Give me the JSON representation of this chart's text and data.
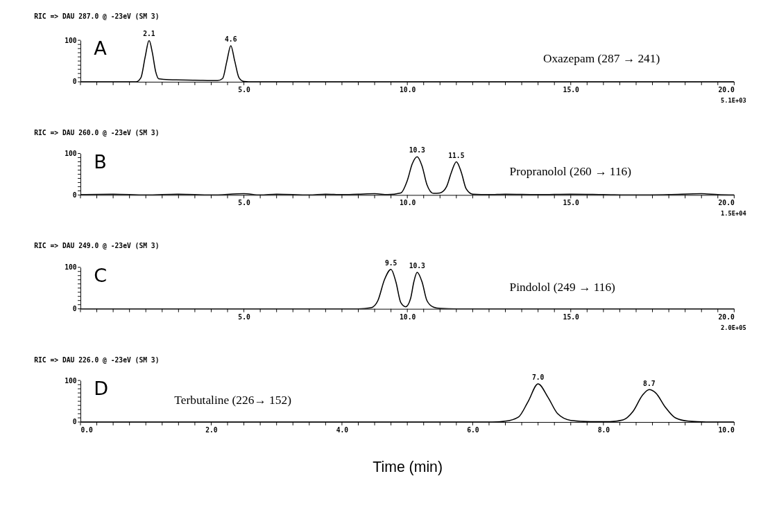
{
  "chart_data": [
    {
      "type": "line",
      "title": "RIC => DAU 287.0 @ -23eV (SM 3)",
      "grid": false,
      "series": [
        {
          "color": "#000000",
          "x": [
            0,
            1.7,
            1.85,
            1.98,
            2.1,
            2.2,
            2.3,
            2.4,
            2.7,
            3.5,
            4.2,
            4.35,
            4.48,
            4.6,
            4.72,
            4.85,
            5.0,
            5.3,
            20
          ],
          "values": [
            0,
            0,
            10,
            60,
            100,
            70,
            25,
            7,
            5,
            4,
            3,
            8,
            50,
            87,
            50,
            10,
            1,
            0,
            0
          ]
        }
      ],
      "xlim": [
        0,
        20
      ],
      "xticks": [
        {
          "value": 0,
          "label": null
        },
        {
          "value": 0.5,
          "label": null
        },
        {
          "value": 1,
          "label": null
        },
        {
          "value": 1.5,
          "label": null
        },
        {
          "value": 2,
          "label": null
        },
        {
          "value": 2.5,
          "label": null
        },
        {
          "value": 3,
          "label": null
        },
        {
          "value": 3.5,
          "label": null
        },
        {
          "value": 4,
          "label": null
        },
        {
          "value": 4.5,
          "label": null
        },
        {
          "value": 5,
          "label": "5.0"
        },
        {
          "value": 5.5,
          "label": null
        },
        {
          "value": 6,
          "label": null
        },
        {
          "value": 6.5,
          "label": null
        },
        {
          "value": 7,
          "label": null
        },
        {
          "value": 7.5,
          "label": null
        },
        {
          "value": 8,
          "label": null
        },
        {
          "value": 8.5,
          "label": null
        },
        {
          "value": 9,
          "label": null
        },
        {
          "value": 9.5,
          "label": null
        },
        {
          "value": 10,
          "label": "10.0"
        },
        {
          "value": 10.5,
          "label": null
        },
        {
          "value": 11,
          "label": null
        },
        {
          "value": 11.5,
          "label": null
        },
        {
          "value": 12,
          "label": null
        },
        {
          "value": 12.5,
          "label": null
        },
        {
          "value": 13,
          "label": null
        },
        {
          "value": 13.5,
          "label": null
        },
        {
          "value": 14,
          "label": null
        },
        {
          "value": 14.5,
          "label": null
        },
        {
          "value": 15,
          "label": "15.0"
        },
        {
          "value": 15.5,
          "label": null
        },
        {
          "value": 16,
          "label": null
        },
        {
          "value": 16.5,
          "label": null
        },
        {
          "value": 17,
          "label": null
        },
        {
          "value": 17.5,
          "label": null
        },
        {
          "value": 18,
          "label": null
        },
        {
          "value": 18.5,
          "label": null
        },
        {
          "value": 19,
          "label": null
        },
        {
          "value": 19.5,
          "label": null
        },
        {
          "value": 20,
          "label": "20.0"
        }
      ],
      "ylim": [
        0,
        100
      ],
      "yticks": [
        0,
        {
          "value": 10,
          "label": null
        },
        {
          "value": 20,
          "label": null
        },
        {
          "value": 30,
          "label": null
        },
        {
          "value": 40,
          "label": null
        },
        {
          "value": 50,
          "label": null
        },
        {
          "value": 60,
          "label": null
        },
        {
          "value": 70,
          "label": null
        },
        {
          "value": 80,
          "label": null
        },
        {
          "value": 90,
          "label": null
        },
        100
      ],
      "annotations": [
        "A",
        "Oxazepam (287 → 241)",
        "5.1E+03",
        {
          "text": "2.1",
          "x": 2.1,
          "y": 100
        },
        {
          "text": "4.6",
          "x": 4.6,
          "y": 87
        }
      ]
    },
    {
      "type": "line",
      "title": "RIC => DAU 260.0 @ -23eV (SM 3)",
      "grid": false,
      "series": [
        {
          "color": "#000000",
          "x": [
            0,
            1,
            2,
            3,
            4,
            5,
            5.5,
            6,
            7,
            7.5,
            8,
            8.5,
            9,
            9.4,
            9.8,
            10.0,
            10.15,
            10.3,
            10.45,
            10.6,
            10.8,
            11.0,
            11.2,
            11.35,
            11.5,
            11.65,
            11.8,
            12.0,
            12.5,
            13,
            14,
            15,
            16,
            17,
            18,
            19,
            19.5,
            20
          ],
          "values": [
            1,
            2,
            0,
            2,
            0,
            3,
            0,
            2,
            0,
            2,
            1,
            2,
            3,
            1,
            5,
            35,
            75,
            92,
            70,
            25,
            4,
            5,
            20,
            55,
            80,
            55,
            15,
            2,
            1,
            2,
            1,
            2,
            1,
            0,
            1,
            3,
            1,
            0
          ]
        }
      ],
      "xlim": [
        0,
        20
      ],
      "xticks": [
        {
          "value": 0,
          "label": null
        },
        {
          "value": 0.5,
          "label": null
        },
        {
          "value": 1,
          "label": null
        },
        {
          "value": 1.5,
          "label": null
        },
        {
          "value": 2,
          "label": null
        },
        {
          "value": 2.5,
          "label": null
        },
        {
          "value": 3,
          "label": null
        },
        {
          "value": 3.5,
          "label": null
        },
        {
          "value": 4,
          "label": null
        },
        {
          "value": 4.5,
          "label": null
        },
        {
          "value": 5,
          "label": "5.0"
        },
        {
          "value": 5.5,
          "label": null
        },
        {
          "value": 6,
          "label": null
        },
        {
          "value": 6.5,
          "label": null
        },
        {
          "value": 7,
          "label": null
        },
        {
          "value": 7.5,
          "label": null
        },
        {
          "value": 8,
          "label": null
        },
        {
          "value": 8.5,
          "label": null
        },
        {
          "value": 9,
          "label": null
        },
        {
          "value": 9.5,
          "label": null
        },
        {
          "value": 10,
          "label": "10.0"
        },
        {
          "value": 10.5,
          "label": null
        },
        {
          "value": 11,
          "label": null
        },
        {
          "value": 11.5,
          "label": null
        },
        {
          "value": 12,
          "label": null
        },
        {
          "value": 12.5,
          "label": null
        },
        {
          "value": 13,
          "label": null
        },
        {
          "value": 13.5,
          "label": null
        },
        {
          "value": 14,
          "label": null
        },
        {
          "value": 14.5,
          "label": null
        },
        {
          "value": 15,
          "label": "15.0"
        },
        {
          "value": 15.5,
          "label": null
        },
        {
          "value": 16,
          "label": null
        },
        {
          "value": 16.5,
          "label": null
        },
        {
          "value": 17,
          "label": null
        },
        {
          "value": 17.5,
          "label": null
        },
        {
          "value": 18,
          "label": null
        },
        {
          "value": 18.5,
          "label": null
        },
        {
          "value": 19,
          "label": null
        },
        {
          "value": 19.5,
          "label": null
        },
        {
          "value": 20,
          "label": "20.0"
        }
      ],
      "ylim": [
        0,
        100
      ],
      "yticks": [
        0,
        {
          "value": 10,
          "label": null
        },
        {
          "value": 20,
          "label": null
        },
        {
          "value": 30,
          "label": null
        },
        {
          "value": 40,
          "label": null
        },
        {
          "value": 50,
          "label": null
        },
        {
          "value": 60,
          "label": null
        },
        {
          "value": 70,
          "label": null
        },
        {
          "value": 80,
          "label": null
        },
        {
          "value": 90,
          "label": null
        },
        100
      ],
      "annotations": [
        "B",
        "Propranolol (260 → 116)",
        "1.5E+04",
        {
          "text": "10.3",
          "x": 10.3,
          "y": 92
        },
        {
          "text": "11.5",
          "x": 11.5,
          "y": 80
        }
      ]
    },
    {
      "type": "line",
      "title": "RIC => DAU 249.0 @ -23eV (SM 3)",
      "grid": false,
      "series": [
        {
          "color": "#000000",
          "x": [
            0,
            8.5,
            8.9,
            9.1,
            9.3,
            9.5,
            9.65,
            9.8,
            9.95,
            10.1,
            10.2,
            10.3,
            10.45,
            10.6,
            10.8,
            11,
            11.5,
            20
          ],
          "values": [
            0,
            0,
            3,
            20,
            70,
            95,
            65,
            15,
            5,
            25,
            65,
            88,
            65,
            20,
            4,
            1,
            0,
            0
          ]
        }
      ],
      "xlim": [
        0,
        20
      ],
      "xticks": [
        {
          "value": 0,
          "label": null
        },
        {
          "value": 0.5,
          "label": null
        },
        {
          "value": 1,
          "label": null
        },
        {
          "value": 1.5,
          "label": null
        },
        {
          "value": 2,
          "label": null
        },
        {
          "value": 2.5,
          "label": null
        },
        {
          "value": 3,
          "label": null
        },
        {
          "value": 3.5,
          "label": null
        },
        {
          "value": 4,
          "label": null
        },
        {
          "value": 4.5,
          "label": null
        },
        {
          "value": 5,
          "label": "5.0"
        },
        {
          "value": 5.5,
          "label": null
        },
        {
          "value": 6,
          "label": null
        },
        {
          "value": 6.5,
          "label": null
        },
        {
          "value": 7,
          "label": null
        },
        {
          "value": 7.5,
          "label": null
        },
        {
          "value": 8,
          "label": null
        },
        {
          "value": 8.5,
          "label": null
        },
        {
          "value": 9,
          "label": null
        },
        {
          "value": 9.5,
          "label": null
        },
        {
          "value": 10,
          "label": "10.0"
        },
        {
          "value": 10.5,
          "label": null
        },
        {
          "value": 11,
          "label": null
        },
        {
          "value": 11.5,
          "label": null
        },
        {
          "value": 12,
          "label": null
        },
        {
          "value": 12.5,
          "label": null
        },
        {
          "value": 13,
          "label": null
        },
        {
          "value": 13.5,
          "label": null
        },
        {
          "value": 14,
          "label": null
        },
        {
          "value": 14.5,
          "label": null
        },
        {
          "value": 15,
          "label": "15.0"
        },
        {
          "value": 15.5,
          "label": null
        },
        {
          "value": 16,
          "label": null
        },
        {
          "value": 16.5,
          "label": null
        },
        {
          "value": 17,
          "label": null
        },
        {
          "value": 17.5,
          "label": null
        },
        {
          "value": 18,
          "label": null
        },
        {
          "value": 18.5,
          "label": null
        },
        {
          "value": 19,
          "label": null
        },
        {
          "value": 19.5,
          "label": null
        },
        {
          "value": 20,
          "label": "20.0"
        }
      ],
      "ylim": [
        0,
        100
      ],
      "yticks": [
        0,
        {
          "value": 10,
          "label": null
        },
        {
          "value": 20,
          "label": null
        },
        {
          "value": 30,
          "label": null
        },
        {
          "value": 40,
          "label": null
        },
        {
          "value": 50,
          "label": null
        },
        {
          "value": 60,
          "label": null
        },
        {
          "value": 70,
          "label": null
        },
        {
          "value": 80,
          "label": null
        },
        {
          "value": 90,
          "label": null
        },
        100
      ],
      "annotations": [
        "C",
        "Pindolol (249 → 116)",
        "2.0E+05",
        {
          "text": "9.5",
          "x": 9.5,
          "y": 95
        },
        {
          "text": "10.3",
          "x": 10.3,
          "y": 88
        }
      ]
    },
    {
      "type": "line",
      "title": "RIC => DAU 226.0 @ -23eV (SM 3)",
      "xlabel": "Time (min)",
      "grid": false,
      "series": [
        {
          "color": "#000000",
          "x": [
            0,
            6.3,
            6.5,
            6.7,
            6.85,
            7.0,
            7.15,
            7.3,
            7.5,
            7.8,
            8.1,
            8.3,
            8.45,
            8.6,
            8.7,
            8.8,
            8.95,
            9.1,
            9.3,
            9.6,
            10
          ],
          "values": [
            0,
            0,
            2,
            12,
            50,
            92,
            60,
            20,
            4,
            1,
            1,
            5,
            25,
            65,
            78,
            70,
            35,
            10,
            2,
            0,
            0
          ]
        }
      ],
      "xlim": [
        0,
        10
      ],
      "xticks": [
        {
          "value": 0,
          "label": "0.0"
        },
        {
          "value": 0.25,
          "label": null
        },
        {
          "value": 0.5,
          "label": null
        },
        {
          "value": 0.75,
          "label": null
        },
        {
          "value": 1,
          "label": null
        },
        {
          "value": 1.25,
          "label": null
        },
        {
          "value": 1.5,
          "label": null
        },
        {
          "value": 1.75,
          "label": null
        },
        {
          "value": 2,
          "label": "2.0"
        },
        {
          "value": 2.25,
          "label": null
        },
        {
          "value": 2.5,
          "label": null
        },
        {
          "value": 2.75,
          "label": null
        },
        {
          "value": 3,
          "label": null
        },
        {
          "value": 3.25,
          "label": null
        },
        {
          "value": 3.5,
          "label": null
        },
        {
          "value": 3.75,
          "label": null
        },
        {
          "value": 4,
          "label": "4.0"
        },
        {
          "value": 4.25,
          "label": null
        },
        {
          "value": 4.5,
          "label": null
        },
        {
          "value": 4.75,
          "label": null
        },
        {
          "value": 5,
          "label": null
        },
        {
          "value": 5.25,
          "label": null
        },
        {
          "value": 5.5,
          "label": null
        },
        {
          "value": 5.75,
          "label": null
        },
        {
          "value": 6,
          "label": "6.0"
        },
        {
          "value": 6.25,
          "label": null
        },
        {
          "value": 6.5,
          "label": null
        },
        {
          "value": 6.75,
          "label": null
        },
        {
          "value": 7,
          "label": null
        },
        {
          "value": 7.25,
          "label": null
        },
        {
          "value": 7.5,
          "label": null
        },
        {
          "value": 7.75,
          "label": null
        },
        {
          "value": 8,
          "label": "8.0"
        },
        {
          "value": 8.25,
          "label": null
        },
        {
          "value": 8.5,
          "label": null
        },
        {
          "value": 8.75,
          "label": null
        },
        {
          "value": 9,
          "label": null
        },
        {
          "value": 9.25,
          "label": null
        },
        {
          "value": 9.5,
          "label": null
        },
        {
          "value": 9.75,
          "label": null
        },
        {
          "value": 10,
          "label": "10.0"
        }
      ],
      "ylim": [
        0,
        100
      ],
      "yticks": [
        0,
        {
          "value": 10,
          "label": null
        },
        {
          "value": 20,
          "label": null
        },
        {
          "value": 30,
          "label": null
        },
        {
          "value": 40,
          "label": null
        },
        {
          "value": 50,
          "label": null
        },
        {
          "value": 60,
          "label": null
        },
        {
          "value": 70,
          "label": null
        },
        {
          "value": 80,
          "label": null
        },
        {
          "value": 90,
          "label": null
        },
        100
      ],
      "annotations": [
        "D",
        "Terbutaline (226→ 152)",
        {
          "text": "7.0",
          "x": 7.0,
          "y": 92
        },
        {
          "text": "8.7",
          "x": 8.7,
          "y": 78
        }
      ]
    }
  ]
}
